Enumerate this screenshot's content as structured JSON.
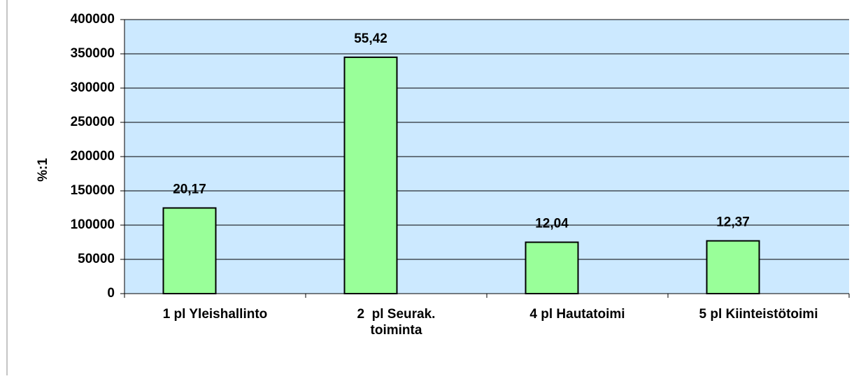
{
  "chart_data": {
    "type": "bar",
    "y_axis_label": "%:1",
    "categories": [
      "1 pl Yleishallinto",
      "2  pl Seurak. toiminta",
      "4 pl Hautatoimi",
      "5 pl Kiinteistötoimi"
    ],
    "values": [
      125000,
      345000,
      75000,
      77000
    ],
    "data_labels": [
      "20,17",
      "55,42",
      "12,04",
      "12,37"
    ],
    "color": "#99ff99",
    "ylim": [
      0,
      400000
    ],
    "yticks": [
      0,
      50000,
      100000,
      150000,
      200000,
      250000,
      300000,
      350000,
      400000
    ],
    "grid": true
  }
}
